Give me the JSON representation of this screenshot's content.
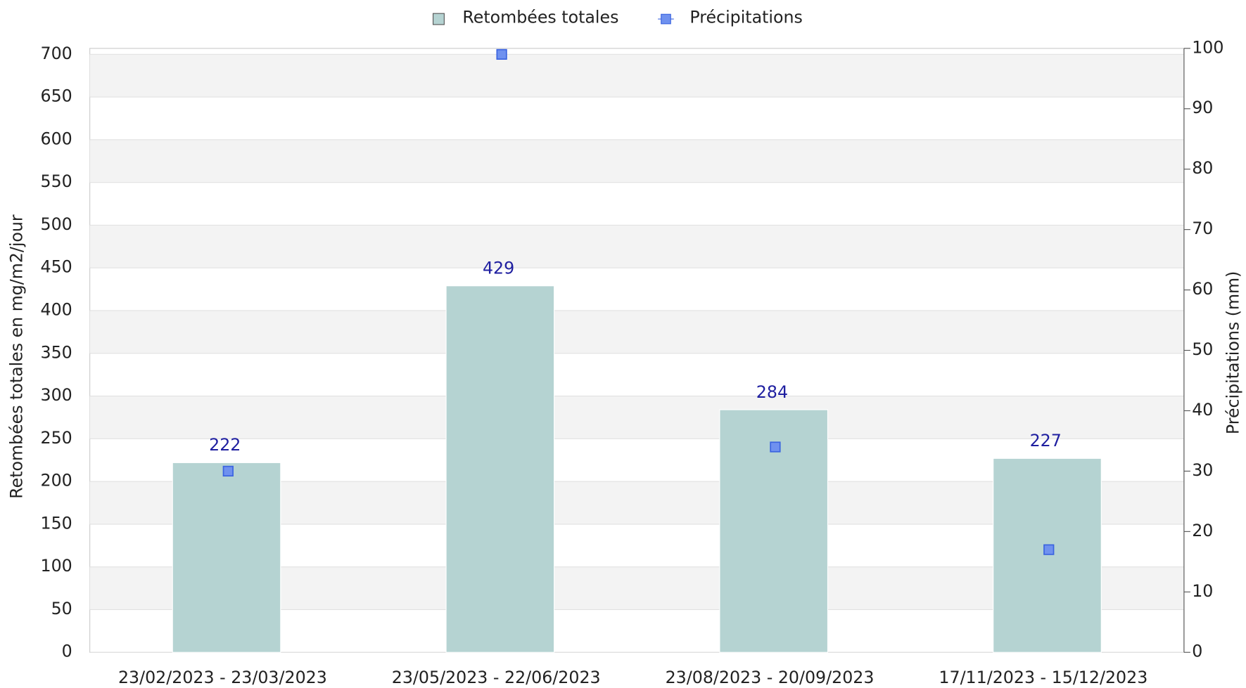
{
  "chart_data": {
    "type": "bar",
    "categories": [
      "23/02/2023 - 23/03/2023",
      "23/05/2023 - 22/06/2023",
      "23/08/2023 - 20/09/2023",
      "17/11/2023 - 15/12/2023"
    ],
    "series": [
      {
        "name": "Retombées totales",
        "color": "#b5d3d2",
        "type": "bar",
        "values": [
          222,
          429,
          284,
          227
        ]
      },
      {
        "name": "Précipitations",
        "color": "#6f91ef",
        "type": "scatter",
        "axis": "y2",
        "values": [
          30,
          99,
          34,
          17
        ]
      }
    ],
    "ylabel": "Retombées totales en mg/m2/jour",
    "y2label": "Précipitations (mm)",
    "ylim": [
      0,
      707
    ],
    "yticks": [
      0,
      50,
      100,
      150,
      200,
      250,
      300,
      350,
      400,
      450,
      500,
      550,
      600,
      650,
      700
    ],
    "y2lim": [
      0,
      100
    ],
    "y2ticks": [
      0,
      10,
      20,
      30,
      40,
      50,
      60,
      70,
      80,
      90,
      100
    ],
    "grid": true,
    "legend": "top"
  }
}
